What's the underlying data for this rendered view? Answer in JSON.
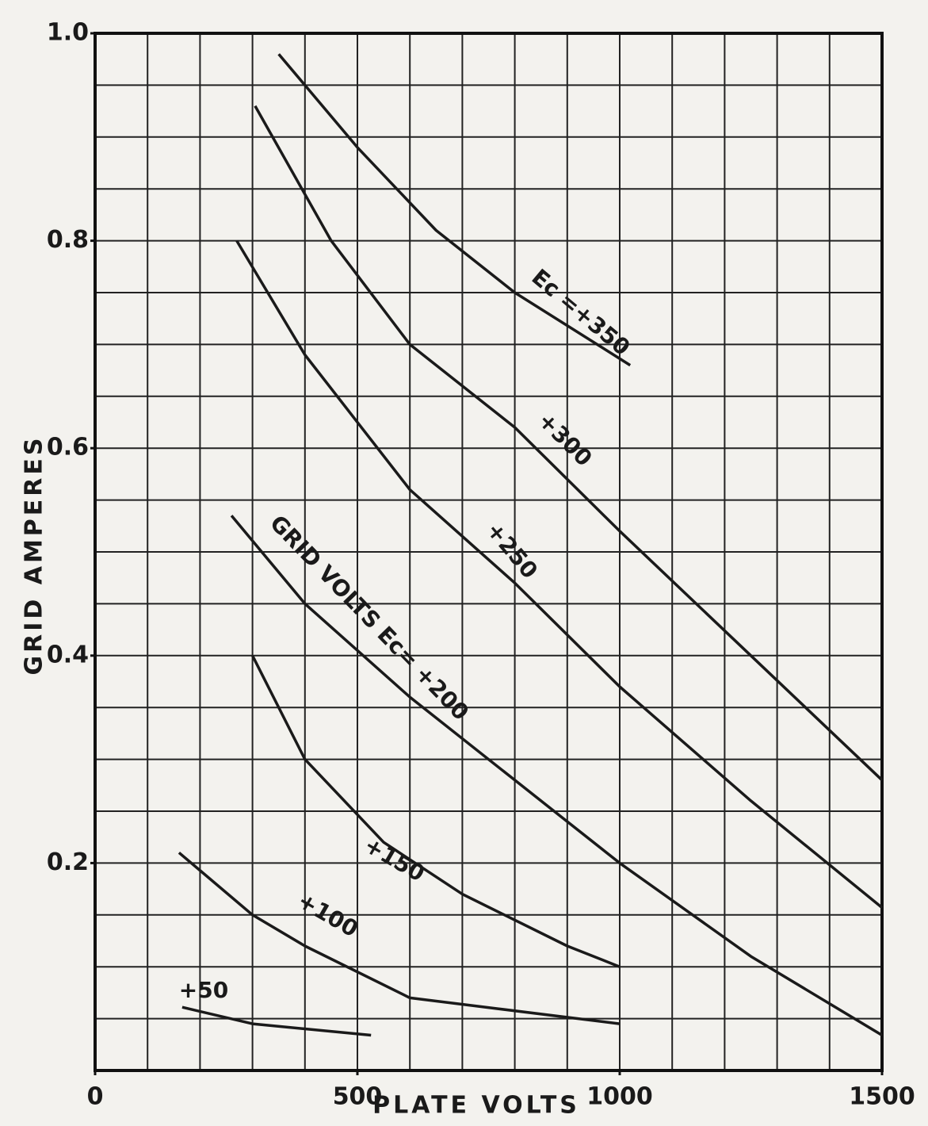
{
  "chart_data": {
    "type": "line",
    "x_label": "PLATE VOLTS",
    "y_label": "GRID AMPERES",
    "xlim": [
      0,
      1500
    ],
    "ylim": [
      0,
      1
    ],
    "xticks": [
      0,
      500,
      1000,
      1500
    ],
    "yticks": [
      {
        "value": 1,
        "label": "1.0"
      },
      0.8,
      0.6,
      0.4,
      0.2
    ],
    "xgrid": [
      0,
      100,
      200,
      300,
      400,
      500,
      600,
      700,
      800,
      900,
      1000,
      1100,
      1200,
      1300,
      1400,
      1500
    ],
    "ygrid": [
      0,
      0.05,
      0.1,
      0.15,
      0.2,
      0.25,
      0.3,
      0.35,
      0.4,
      0.45,
      0.5,
      0.55,
      0.6,
      0.65,
      0.7,
      0.75,
      0.8,
      0.85,
      0.9,
      0.95,
      1
    ],
    "grid": true,
    "series": [
      {
        "name": "Ec =+350",
        "color": "#1a1a1a",
        "x": [
          350,
          500,
          650,
          800,
          1020
        ],
        "values": [
          0.98,
          0.89,
          0.81,
          0.75,
          0.68
        ]
      },
      {
        "name": "+300",
        "color": "#1a1a1a",
        "x": [
          305,
          450,
          600,
          800,
          1000,
          1250,
          1500
        ],
        "values": [
          0.93,
          0.8,
          0.7,
          0.62,
          0.52,
          0.4,
          0.28
        ]
      },
      {
        "name": "+250",
        "color": "#1a1a1a",
        "x": [
          270,
          400,
          600,
          800,
          1000,
          1250,
          1500
        ],
        "values": [
          0.8,
          0.69,
          0.56,
          0.47,
          0.37,
          0.26,
          0.157
        ]
      },
      {
        "name": "GRID VOLTS Ec= +200",
        "color": "#1a1a1a",
        "x": [
          260,
          400,
          600,
          800,
          1000,
          1250,
          1500
        ],
        "values": [
          0.535,
          0.45,
          0.36,
          0.28,
          0.2,
          0.11,
          0.034
        ]
      },
      {
        "name": "+150",
        "color": "#1a1a1a",
        "x": [
          300,
          400,
          550,
          700,
          900,
          1000
        ],
        "values": [
          0.4,
          0.3,
          0.22,
          0.17,
          0.12,
          0.1
        ]
      },
      {
        "name": "+100",
        "color": "#1a1a1a",
        "x": [
          160,
          300,
          400,
          600,
          1000
        ],
        "values": [
          0.21,
          0.15,
          0.12,
          0.07,
          0.045
        ]
      },
      {
        "name": "+50",
        "color": "#1a1a1a",
        "x": [
          166,
          300,
          526
        ],
        "values": [
          0.061,
          0.045,
          0.034
        ]
      }
    ]
  }
}
